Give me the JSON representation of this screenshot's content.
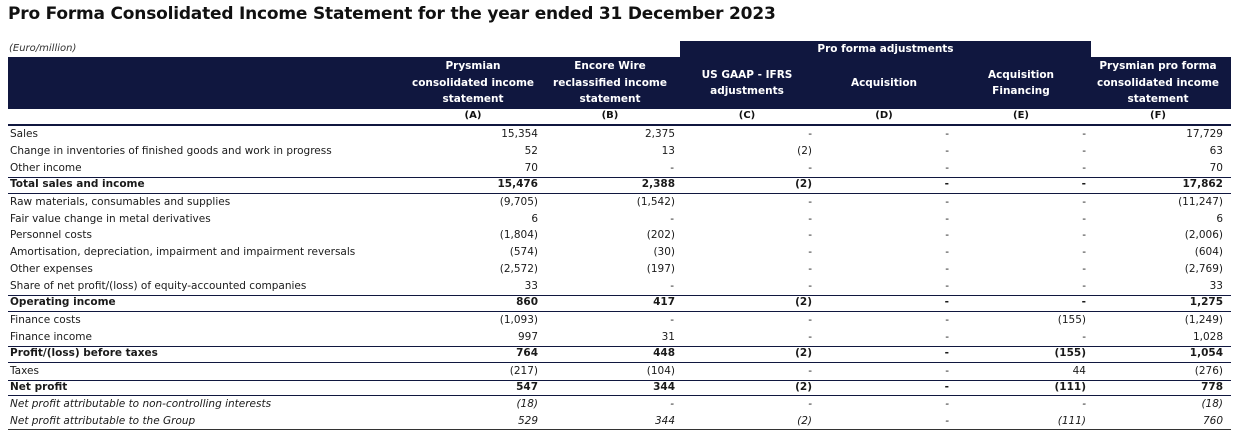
{
  "title": "Pro Forma Consolidated Income Statement for the year ended 31 December 2023",
  "unit": "(Euro/million)",
  "adjustments_band": "Pro forma adjustments",
  "colors": {
    "header_bg": "#10173f",
    "header_text": "#ffffff"
  },
  "columns": [
    {
      "lines": [
        "Prysmian",
        "consolidated income",
        "statement"
      ],
      "letter": "(A)"
    },
    {
      "lines": [
        "Encore Wire",
        "reclassified income",
        "statement"
      ],
      "letter": "(B)"
    },
    {
      "lines": [
        "US GAAP - IFRS",
        "adjustments"
      ],
      "letter": "(C)"
    },
    {
      "lines": [
        "Acquisition"
      ],
      "letter": "(D)"
    },
    {
      "lines": [
        "Acquisition",
        "Financing"
      ],
      "letter": "(E)"
    },
    {
      "lines": [
        "Prysmian pro forma",
        "consolidated income",
        "statement"
      ],
      "letter": "(F)"
    }
  ],
  "rows": [
    {
      "label": "Sales",
      "values": [
        "15,354",
        "2,375",
        "-",
        "-",
        "-",
        "17,729"
      ],
      "style": "normal"
    },
    {
      "label": "Change in inventories of finished goods and work in progress",
      "values": [
        "52",
        "13",
        "(2)",
        "-",
        "-",
        "63"
      ],
      "style": "normal"
    },
    {
      "label": "Other income",
      "values": [
        "70",
        "-",
        "-",
        "-",
        "-",
        "70"
      ],
      "style": "normal"
    },
    {
      "label": "Total sales and income",
      "values": [
        "15,476",
        "2,388",
        "(2)",
        "-",
        "-",
        "17,862"
      ],
      "style": "total"
    },
    {
      "label": "Raw materials, consumables and supplies",
      "values": [
        "(9,705)",
        "(1,542)",
        "-",
        "-",
        "-",
        "(11,247)"
      ],
      "style": "normal"
    },
    {
      "label": "Fair value change in metal derivatives",
      "values": [
        "6",
        "-",
        "-",
        "-",
        "-",
        "6"
      ],
      "style": "normal"
    },
    {
      "label": "Personnel costs",
      "values": [
        "(1,804)",
        "(202)",
        "-",
        "-",
        "-",
        "(2,006)"
      ],
      "style": "normal"
    },
    {
      "label": "Amortisation, depreciation, impairment and impairment reversals",
      "values": [
        "(574)",
        "(30)",
        "-",
        "-",
        "-",
        "(604)"
      ],
      "style": "normal"
    },
    {
      "label": "Other expenses",
      "values": [
        "(2,572)",
        "(197)",
        "-",
        "-",
        "-",
        "(2,769)"
      ],
      "style": "normal"
    },
    {
      "label": "Share of net profit/(loss) of equity-accounted companies",
      "values": [
        "33",
        "-",
        "-",
        "-",
        "-",
        "33"
      ],
      "style": "normal"
    },
    {
      "label": "Operating income",
      "values": [
        "860",
        "417",
        "(2)",
        "-",
        "-",
        "1,275"
      ],
      "style": "total"
    },
    {
      "label": "Finance costs",
      "values": [
        "(1,093)",
        "-",
        "-",
        "-",
        "(155)",
        "(1,249)"
      ],
      "style": "normal"
    },
    {
      "label": "Finance income",
      "values": [
        "997",
        "31",
        "-",
        "-",
        "-",
        "1,028"
      ],
      "style": "normal"
    },
    {
      "label": "Profit/(loss) before taxes",
      "values": [
        "764",
        "448",
        "(2)",
        "-",
        "(155)",
        "1,054"
      ],
      "style": "total"
    },
    {
      "label": "Taxes",
      "values": [
        "(217)",
        "(104)",
        "-",
        "-",
        "44",
        "(276)"
      ],
      "style": "normal"
    },
    {
      "label": "Net profit",
      "values": [
        "547",
        "344",
        "(2)",
        "-",
        "(111)",
        "778"
      ],
      "style": "total"
    },
    {
      "label": "Net profit attributable to non-controlling interests",
      "values": [
        "(18)",
        "-",
        "-",
        "-",
        "-",
        "(18)"
      ],
      "style": "italic"
    },
    {
      "label": "Net profit attributable to the Group",
      "values": [
        "529",
        "344",
        "(2)",
        "-",
        "(111)",
        "760"
      ],
      "style": "italic last"
    }
  ]
}
